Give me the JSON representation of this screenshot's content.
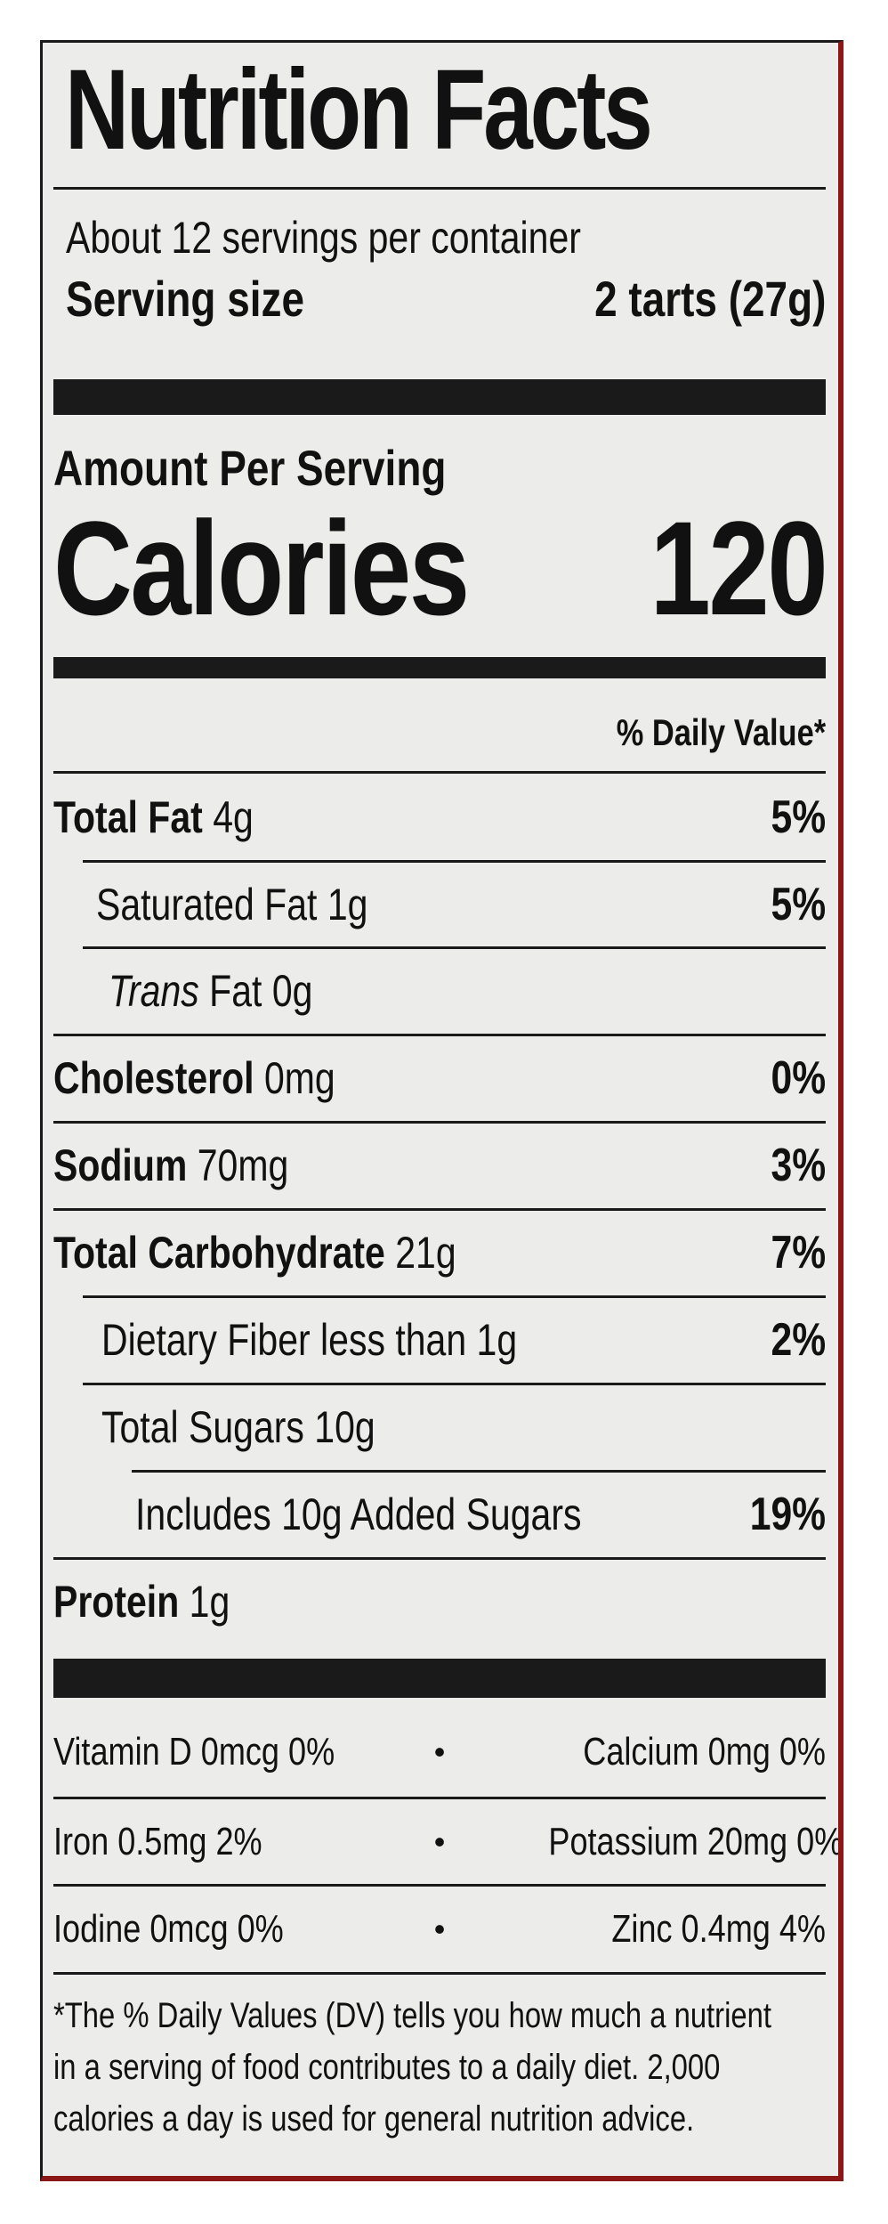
{
  "title": "Nutrition Facts",
  "servings_per_container": "About 12 servings per container",
  "serving_size_label": "Serving size",
  "serving_size_value": "2 tarts (27g)",
  "amount_per_serving": "Amount Per Serving",
  "calories_label": "Calories",
  "calories_value": "120",
  "daily_value_header": "% Daily Value*",
  "nutrients": [
    {
      "name": "Total Fat",
      "amount": "4g",
      "dv": "5%"
    },
    {
      "name": "Saturated Fat",
      "amount": "1g",
      "dv": "5%"
    },
    {
      "name_italic": "Trans",
      "name": "Fat",
      "amount": "0g",
      "dv": ""
    },
    {
      "name": "Cholesterol",
      "amount": "0mg",
      "dv": "0%"
    },
    {
      "name": "Sodium",
      "amount": "70mg",
      "dv": "3%"
    },
    {
      "name": "Total Carbohydrate",
      "amount": "21g",
      "dv": "7%"
    },
    {
      "name": "Dietary Fiber less than 1g",
      "amount": "",
      "dv": "2%"
    },
    {
      "name": "Total Sugars 10g",
      "amount": "",
      "dv": ""
    },
    {
      "name": "Includes 10g Added Sugars",
      "amount": "",
      "dv": "19%"
    },
    {
      "name": "Protein",
      "amount": "1g",
      "dv": ""
    }
  ],
  "minerals": [
    {
      "left": "Vitamin D 0mcg 0%",
      "right": "Calcium 0mg 0%"
    },
    {
      "left": "Iron 0.5mg 2%",
      "right": "Potassium 20mg 0%"
    },
    {
      "left": "Iodine 0mcg 0%",
      "right": "Zinc 0.4mg 4%"
    }
  ],
  "separator": "•",
  "footnote": [
    "*The % Daily Values (DV) tells you how much a nutrient",
    "in a serving of food contributes to a daily diet. 2,000",
    "calories a day is used for general nutrition advice."
  ]
}
